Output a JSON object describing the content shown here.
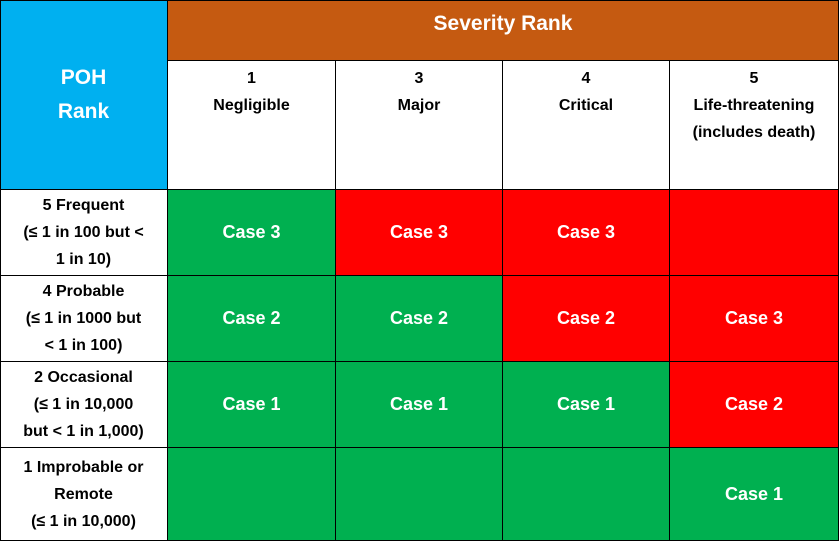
{
  "poh_header": {
    "line1": "POH",
    "line2": "Rank"
  },
  "severity_header": "Severity Rank",
  "severity_columns": [
    {
      "rank": "1",
      "label_line1": "Negligible",
      "label_line2": ""
    },
    {
      "rank": "3",
      "label_line1": "Major",
      "label_line2": ""
    },
    {
      "rank": "4",
      "label_line1": "Critical",
      "label_line2": ""
    },
    {
      "rank": "5",
      "label_line1": "Life-threatening",
      "label_line2": "(includes death)"
    }
  ],
  "rows": [
    {
      "header": [
        "5 Frequent",
        "(≤ 1 in 100 but <",
        "1 in 10)"
      ],
      "cells": [
        {
          "text": "Case 3",
          "color": "green"
        },
        {
          "text": "Case 3",
          "color": "red"
        },
        {
          "text": "Case 3",
          "color": "red"
        },
        {
          "text": "",
          "color": "red"
        }
      ]
    },
    {
      "header": [
        "4 Probable",
        "(≤ 1 in 1000 but",
        "< 1 in 100)"
      ],
      "cells": [
        {
          "text": "Case 2",
          "color": "green"
        },
        {
          "text": "Case 2",
          "color": "green"
        },
        {
          "text": "Case 2",
          "color": "red"
        },
        {
          "text": "Case 3",
          "color": "red"
        }
      ]
    },
    {
      "header": [
        "2 Occasional",
        "(≤ 1 in 10,000",
        "but < 1 in 1,000)"
      ],
      "cells": [
        {
          "text": "Case 1",
          "color": "green"
        },
        {
          "text": "Case 1",
          "color": "green"
        },
        {
          "text": "Case 1",
          "color": "green"
        },
        {
          "text": "Case 2",
          "color": "red"
        }
      ]
    },
    {
      "header": [
        "1 Improbable or",
        "Remote",
        "(≤ 1 in 10,000)"
      ],
      "cells": [
        {
          "text": "",
          "color": "green"
        },
        {
          "text": "",
          "color": "green"
        },
        {
          "text": "",
          "color": "green"
        },
        {
          "text": "Case 1",
          "color": "green"
        }
      ]
    }
  ],
  "colors": {
    "poh_header_bg": "#00b0f0",
    "severity_header_bg": "#c55a11",
    "green": "#00b050",
    "red": "#ff0000"
  }
}
